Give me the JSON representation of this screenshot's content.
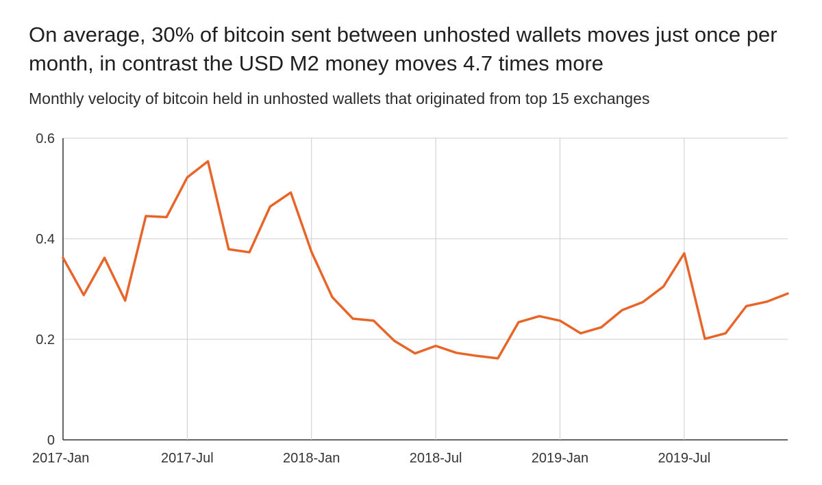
{
  "title": "On average, 30% of bitcoin sent between unhosted wallets moves just once per month, in contrast the USD M2 money moves 4.7 times more",
  "subtitle": "Monthly velocity of bitcoin held in unhosted wallets that originated from top 15 exchanges",
  "colors": {
    "line": "#e8652a",
    "grid": "#cccccc",
    "axis": "#333333"
  },
  "chart_data": {
    "type": "line",
    "title": "On average, 30% of bitcoin sent between unhosted wallets moves just once per month, in contrast the USD M2 money moves 4.7 times more",
    "subtitle": "Monthly velocity of bitcoin held in unhosted wallets that originated from top 15 exchanges",
    "xlabel": "",
    "ylabel": "",
    "ylim": [
      0,
      0.6
    ],
    "yticks": [
      "0",
      "0.2",
      "0.4",
      "0.6"
    ],
    "xticks": [
      "2017-Jan",
      "2017-Jul",
      "2018-Jan",
      "2018-Jul",
      "2019-Jan",
      "2019-Jul"
    ],
    "grid": true,
    "legend": "none",
    "x": [
      "2017-01",
      "2017-02",
      "2017-03",
      "2017-04",
      "2017-05",
      "2017-06",
      "2017-07",
      "2017-08",
      "2017-09",
      "2017-10",
      "2017-11",
      "2017-12",
      "2018-01",
      "2018-02",
      "2018-03",
      "2018-04",
      "2018-05",
      "2018-06",
      "2018-07",
      "2018-08",
      "2018-09",
      "2018-10",
      "2018-11",
      "2018-12",
      "2019-01",
      "2019-02",
      "2019-03",
      "2019-04",
      "2019-05",
      "2019-06",
      "2019-07",
      "2019-08",
      "2019-09",
      "2019-10",
      "2019-11",
      "2019-12"
    ],
    "series": [
      {
        "values": [
          0.362,
          0.288,
          0.362,
          0.277,
          0.445,
          0.443,
          0.522,
          0.554,
          0.379,
          0.373,
          0.464,
          0.492,
          0.374,
          0.284,
          0.241,
          0.237,
          0.197,
          0.172,
          0.187,
          0.173,
          0.167,
          0.162,
          0.234,
          0.246,
          0.237,
          0.212,
          0.224,
          0.258,
          0.274,
          0.305,
          0.371,
          0.201,
          0.212,
          0.266,
          0.275,
          0.291
        ]
      }
    ]
  }
}
